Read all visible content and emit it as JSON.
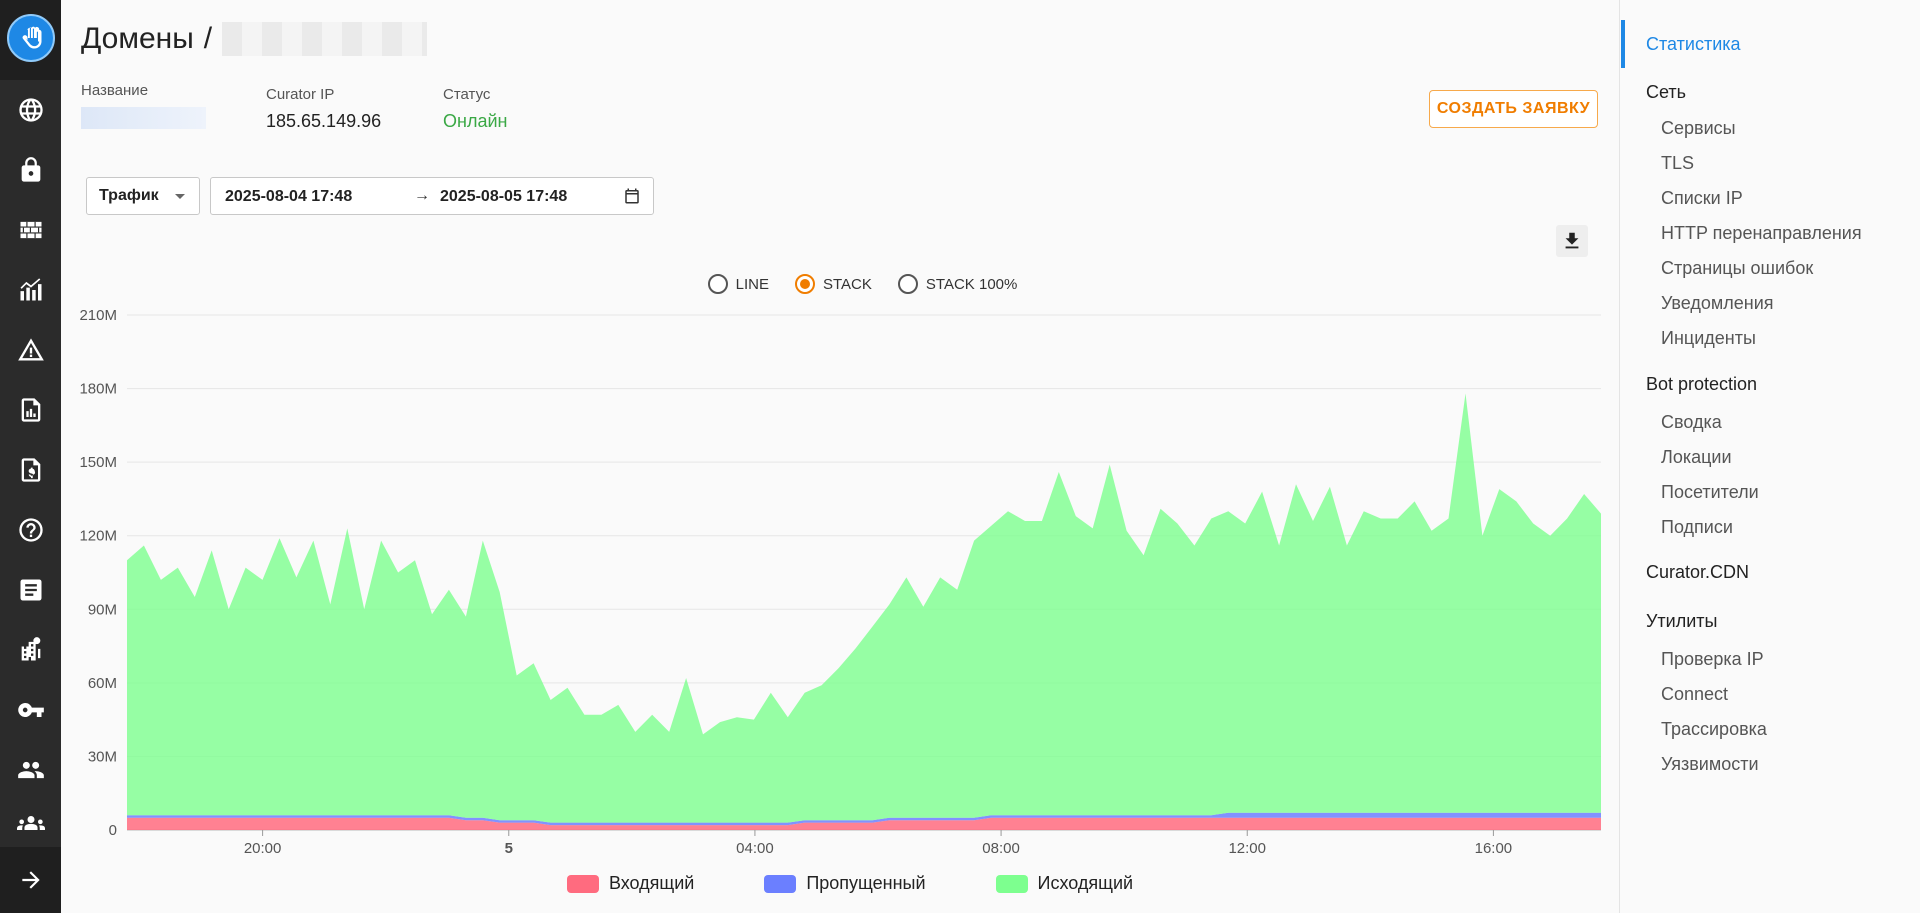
{
  "page": {
    "title": "Домены",
    "separator": "/",
    "name_label": "Название",
    "ip_label": "Curator IP",
    "ip_value": "185.65.149.96",
    "status_label": "Статус",
    "status_value": "Онлайн",
    "status_color": "#3aa845",
    "create_button": "СОЗДАТЬ ЗАЯВКУ",
    "accent_color": "#f07d00"
  },
  "filters": {
    "metric": "Трафик",
    "date_from": "2025-08-04 17:48",
    "arrow": "→",
    "date_to": "2025-08-05 17:48"
  },
  "view_modes": [
    {
      "label": "LINE",
      "selected": false
    },
    {
      "label": "STACK",
      "selected": true
    },
    {
      "label": "STACK 100%",
      "selected": false
    }
  ],
  "rail_icons": [
    "globe-icon",
    "lock-icon",
    "firewall-icon",
    "analytics-icon",
    "warning-icon",
    "report-icon",
    "billing-icon",
    "help-icon",
    "article-icon",
    "building-icon",
    "key-icon",
    "users-icon",
    "group-icon"
  ],
  "nav": {
    "active": "Статистика",
    "sections": [
      {
        "title": "Сеть",
        "items": [
          "Сервисы",
          "TLS",
          "Списки IP",
          "HTTP перенаправления",
          "Страницы ошибок",
          "Уведомления",
          "Инциденты"
        ]
      },
      {
        "title": "Bot protection",
        "items": [
          "Сводка",
          "Локации",
          "Посетители",
          "Подписи"
        ]
      },
      {
        "title": "Curator.CDN",
        "items": []
      },
      {
        "title": "Утилиты",
        "items": [
          "Проверка IP",
          "Connect",
          "Трассировка",
          "Уязвимости"
        ]
      }
    ]
  },
  "chart_data": {
    "type": "area",
    "stacked": true,
    "ylim": [
      0,
      210000000
    ],
    "y_ticks": [
      "0",
      "30M",
      "60M",
      "90M",
      "120M",
      "150M",
      "180M",
      "210M"
    ],
    "x_ticks": [
      "20:00",
      "5",
      "04:00",
      "08:00",
      "12:00",
      "16:00"
    ],
    "grid": true,
    "legend_position": "bottom",
    "series": [
      {
        "name": "Входящий",
        "color": "#ff6b7f",
        "values": [
          5,
          5,
          5,
          5,
          5,
          5,
          5,
          5,
          5,
          5,
          5,
          5,
          5,
          5,
          5,
          5,
          5,
          5,
          5,
          5,
          4,
          4,
          3,
          3,
          3,
          2,
          2,
          2,
          2,
          2,
          2,
          2,
          2,
          2,
          2,
          2,
          2,
          2,
          2,
          2,
          3,
          3,
          3,
          3,
          3,
          4,
          4,
          4,
          4,
          4,
          4,
          5,
          5,
          5,
          5,
          5,
          5,
          5,
          5,
          5,
          5,
          5,
          5,
          5,
          5,
          5,
          5,
          5,
          5,
          5,
          5,
          5,
          5,
          5,
          5,
          5,
          5,
          5,
          5,
          5,
          5,
          5,
          5,
          5,
          5,
          5,
          5,
          5
        ]
      },
      {
        "name": "Пропущенный",
        "color": "#6b7fff",
        "values": [
          1,
          1,
          1,
          1,
          1,
          1,
          1,
          1,
          1,
          1,
          1,
          1,
          1,
          1,
          1,
          1,
          1,
          1,
          1,
          1,
          1,
          1,
          1,
          1,
          1,
          1,
          1,
          1,
          1,
          1,
          1,
          1,
          1,
          1,
          1,
          1,
          1,
          1,
          1,
          1,
          1,
          1,
          1,
          1,
          1,
          1,
          1,
          1,
          1,
          1,
          1,
          1,
          1,
          1,
          1,
          1,
          1,
          1,
          1,
          1,
          1,
          1,
          1,
          1,
          1,
          2,
          2,
          2,
          2,
          2,
          2,
          2,
          2,
          2,
          2,
          2,
          2,
          2,
          2,
          2,
          2,
          2,
          2,
          2,
          2,
          2,
          2,
          2
        ]
      },
      {
        "name": "Исходящий",
        "color": "#7dff8f",
        "values": [
          104,
          110,
          96,
          101,
          89,
          108,
          84,
          101,
          96,
          113,
          97,
          112,
          86,
          117,
          84,
          112,
          99,
          104,
          82,
          92,
          82,
          113,
          93,
          59,
          64,
          50,
          55,
          44,
          44,
          48,
          37,
          44,
          37,
          59,
          36,
          41,
          43,
          42,
          53,
          43,
          52,
          55,
          62,
          70,
          79,
          87,
          98,
          86,
          98,
          93,
          113,
          118,
          124,
          120,
          120,
          140,
          122,
          117,
          143,
          116,
          106,
          125,
          119,
          110,
          121,
          123,
          118,
          131,
          109,
          134,
          119,
          133,
          109,
          123,
          120,
          120,
          127,
          115,
          120,
          171,
          113,
          132,
          127,
          118,
          113,
          120,
          130,
          122
        ]
      }
    ],
    "note_units": "values in millions (M)"
  }
}
